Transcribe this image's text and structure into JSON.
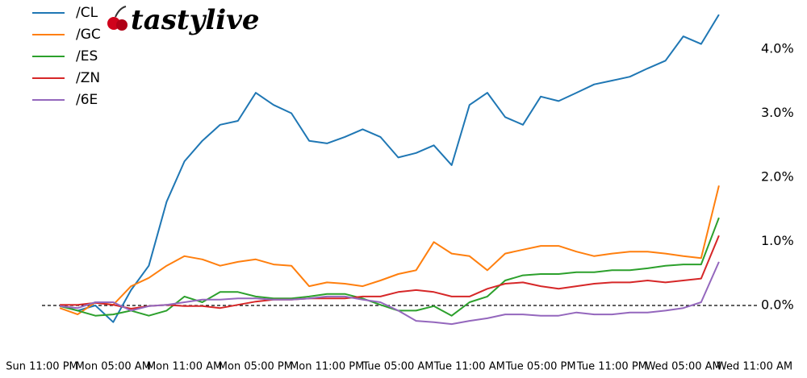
{
  "logo": "tastylive",
  "chart_data": {
    "type": "line",
    "categories": [
      "Sun 11:00 PM",
      null,
      null,
      null,
      "Mon 05:00 AM",
      null,
      null,
      null,
      "Mon 11:00 AM",
      null,
      null,
      null,
      "Mon 05:00 PM",
      null,
      null,
      null,
      "Mon 11:00 PM",
      null,
      null,
      null,
      "Tue 05:00 AM",
      null,
      null,
      null,
      "Tue 11:00 AM",
      null,
      null,
      null,
      "Tue 05:00 PM",
      null,
      null,
      null,
      "Tue 11:00 PM",
      null,
      null,
      null,
      "Wed 05:00 AM",
      null,
      null,
      null,
      "Wed 11:00 AM"
    ],
    "series": [
      {
        "name": "/CL",
        "color": "#1f77b4",
        "values": [
          null,
          0,
          -0.08,
          0,
          -0.26,
          0.24,
          0.62,
          1.62,
          2.25,
          2.57,
          2.82,
          2.88,
          3.32,
          3.13,
          3.0,
          2.57,
          2.53,
          2.63,
          2.75,
          2.63,
          2.31,
          2.38,
          2.5,
          2.19,
          3.13,
          3.32,
          2.94,
          2.82,
          3.26,
          3.19,
          3.32,
          3.45,
          3.51,
          3.57,
          3.7,
          3.82,
          4.2,
          4.08,
          4.54,
          null,
          null
        ]
      },
      {
        "name": "/GC",
        "color": "#ff7f0e",
        "values": [
          null,
          -0.04,
          -0.14,
          0.05,
          0.01,
          0.3,
          0.43,
          0.62,
          0.77,
          0.72,
          0.62,
          0.68,
          0.72,
          0.64,
          0.62,
          0.3,
          0.36,
          0.34,
          0.3,
          0.39,
          0.49,
          0.55,
          0.99,
          0.81,
          0.77,
          0.55,
          0.81,
          0.87,
          0.93,
          0.93,
          0.84,
          0.77,
          0.81,
          0.84,
          0.84,
          0.81,
          0.77,
          0.74,
          1.87,
          null,
          null
        ]
      },
      {
        "name": "/ES",
        "color": "#2ca02c",
        "values": [
          null,
          -0.01,
          -0.08,
          -0.16,
          -0.14,
          -0.08,
          -0.16,
          -0.08,
          0.14,
          0.05,
          0.21,
          0.21,
          0.14,
          0.11,
          0.11,
          0.14,
          0.18,
          0.18,
          0.11,
          0.01,
          -0.08,
          -0.08,
          -0.01,
          -0.16,
          0.05,
          0.14,
          0.39,
          0.47,
          0.49,
          0.49,
          0.52,
          0.52,
          0.55,
          0.55,
          0.58,
          0.62,
          0.64,
          0.64,
          1.37,
          null,
          null
        ]
      },
      {
        "name": "/ZN",
        "color": "#d62728",
        "values": [
          null,
          0.01,
          0.01,
          0.04,
          0.01,
          -0.05,
          -0.01,
          0.01,
          -0.01,
          -0.01,
          -0.04,
          0.01,
          0.06,
          0.09,
          0.09,
          0.11,
          0.11,
          0.11,
          0.14,
          0.14,
          0.21,
          0.24,
          0.21,
          0.14,
          0.14,
          0.26,
          0.34,
          0.36,
          0.3,
          0.26,
          0.3,
          0.34,
          0.36,
          0.36,
          0.39,
          0.36,
          0.39,
          0.42,
          1.09,
          null,
          null
        ]
      },
      {
        "name": "/6E",
        "color": "#9467bd",
        "values": [
          null,
          -0.01,
          -0.04,
          0.05,
          0.05,
          -0.08,
          -0.01,
          0.01,
          0.05,
          0.09,
          0.09,
          0.11,
          0.11,
          0.09,
          0.09,
          0.11,
          0.14,
          0.14,
          0.09,
          0.05,
          -0.08,
          -0.24,
          -0.26,
          -0.29,
          -0.24,
          -0.2,
          -0.14,
          -0.14,
          -0.16,
          -0.16,
          -0.11,
          -0.14,
          -0.14,
          -0.11,
          -0.11,
          -0.08,
          -0.04,
          0.05,
          0.68,
          null,
          null
        ]
      }
    ],
    "ylim": [
      -0.5,
      4.7
    ],
    "yticks": [
      {
        "value": 0,
        "label": "0.0%"
      },
      {
        "value": 1,
        "label": "1.0%"
      },
      {
        "value": 2,
        "label": "2.0%"
      },
      {
        "value": 3,
        "label": "3.0%"
      },
      {
        "value": 4,
        "label": "4.0%"
      }
    ],
    "legend": "upper left"
  }
}
